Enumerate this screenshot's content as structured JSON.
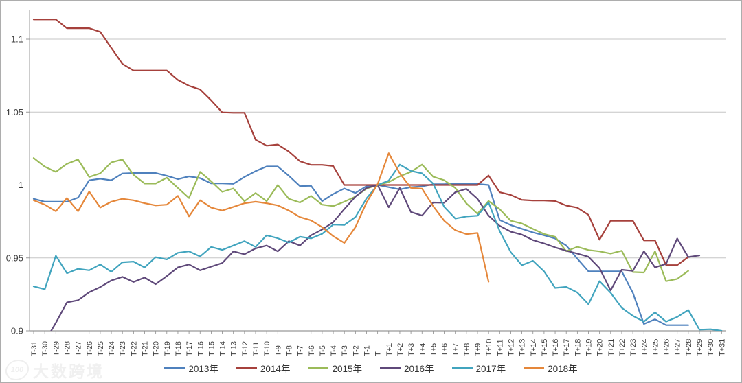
{
  "watermark": {
    "logo": "100",
    "brand": "大数跨境"
  },
  "chart_data": {
    "type": "line",
    "title": "",
    "xlabel": "",
    "ylabel": "",
    "ylim": [
      0.9,
      1.12
    ],
    "y_ticks": [
      1.1,
      1.05,
      1,
      0.95,
      0.9
    ],
    "y_tick_labels": [
      "1.1",
      "1.05",
      "1",
      "0.95",
      "0.9"
    ],
    "grid": true,
    "legend_position": "bottom",
    "x_categories": [
      "T-31",
      "T-30",
      "T-29",
      "T-28",
      "T-27",
      "T-26",
      "T-25",
      "T-24",
      "T-23",
      "T-22",
      "T-21",
      "T-20",
      "T-19",
      "T-18",
      "T-17",
      "T-16",
      "T-15",
      "T-14",
      "T-13",
      "T-12",
      "T-11",
      "T-10",
      "T-9",
      "T-8",
      "T-7",
      "T-6",
      "T-5",
      "T-4",
      "T-3",
      "T-2",
      "T-1",
      "T",
      "T+1",
      "T+2",
      "T+3",
      "T+4",
      "T+5",
      "T+6",
      "T+7",
      "T+8",
      "T+9",
      "T+10",
      "T+11",
      "T+12",
      "T+13",
      "T+14",
      "T+15",
      "T+16",
      "T+17",
      "T+18",
      "T+19",
      "T+20",
      "T+21",
      "T+22",
      "T+23",
      "T+24",
      "T+25",
      "T+26",
      "T+27",
      "T+28",
      "T+29",
      "T+30",
      "T+31"
    ],
    "series": [
      {
        "name": "2013年",
        "color": "#4F81BD",
        "values": [
          0.9905,
          0.9885,
          0.9885,
          0.9885,
          0.9913,
          1.0032,
          1.0043,
          1.0032,
          1.0079,
          1.0082,
          1.0082,
          1.0082,
          1.0063,
          1.004,
          1.0059,
          1.0047,
          1.0011,
          1.0011,
          1.0008,
          1.0055,
          1.0095,
          1.0127,
          1.0127,
          1.0063,
          0.9992,
          0.9995,
          0.9889,
          0.9938,
          0.9976,
          0.9945,
          0.9992,
          1.0,
          0.9985,
          0.997,
          0.9985,
          0.999,
          1.0005,
          1.0005,
          1.0009,
          1.0009,
          1.0007,
          1.0,
          0.976,
          0.9725,
          0.97,
          0.9675,
          0.9655,
          0.9633,
          0.9585,
          0.9495,
          0.9408,
          0.9408,
          0.9408,
          0.9408,
          0.9261,
          0.9047,
          0.9079,
          0.9039,
          0.9039,
          0.9039,
          null,
          null,
          null
        ]
      },
      {
        "name": "2014年",
        "color": "#A6413C",
        "values": [
          1.1135,
          1.1135,
          1.1135,
          1.1075,
          1.1075,
          1.1075,
          1.105,
          1.094,
          1.083,
          1.0785,
          1.0785,
          1.0785,
          1.0785,
          1.072,
          1.068,
          1.0655,
          1.058,
          1.0498,
          1.0495,
          1.0495,
          1.031,
          1.0269,
          1.0277,
          1.0229,
          1.0163,
          1.0138,
          1.0138,
          1.013,
          1.0,
          1.0,
          1.0,
          1.0,
          1.0,
          1.0,
          1.0,
          1.0,
          1.0,
          1.0,
          1.0,
          1.0,
          1.0,
          1.0065,
          0.995,
          0.9932,
          0.9898,
          0.9893,
          0.9893,
          0.989,
          0.9859,
          0.9844,
          0.9795,
          0.9625,
          0.9755,
          0.9755,
          0.9755,
          0.962,
          0.962,
          0.9451,
          0.9451,
          0.9506,
          null,
          null,
          null
        ]
      },
      {
        "name": "2015年",
        "color": "#9BBB59",
        "values": [
          1.0185,
          1.0125,
          1.009,
          1.0145,
          1.0175,
          1.0055,
          1.008,
          1.0155,
          1.0175,
          1.007,
          1.001,
          1.001,
          1.005,
          0.998,
          0.991,
          1.009,
          1.0025,
          0.9953,
          0.9976,
          0.9889,
          0.9945,
          0.9889,
          1.0,
          0.9905,
          0.988,
          0.9925,
          0.9865,
          0.9855,
          0.9885,
          0.992,
          0.9975,
          1.0,
          1.002,
          1.006,
          1.009,
          1.014,
          1.0057,
          1.0033,
          0.998,
          0.9874,
          0.9803,
          0.989,
          0.9834,
          0.9755,
          0.9736,
          0.9699,
          0.9664,
          0.9645,
          0.9546,
          0.9576,
          0.9554,
          0.9545,
          0.953,
          0.9549,
          0.9403,
          0.94,
          0.9546,
          0.934,
          0.9356,
          0.9411,
          null,
          null,
          null
        ]
      },
      {
        "name": "2016年",
        "color": "#5F497A",
        "values": [
          null,
          0.8925,
          0.9055,
          0.9195,
          0.921,
          0.9265,
          0.93,
          0.9345,
          0.937,
          0.9335,
          0.9365,
          0.932,
          0.9375,
          0.9435,
          0.9455,
          0.9415,
          0.944,
          0.9465,
          0.9545,
          0.9525,
          0.9565,
          0.9585,
          0.9545,
          0.9615,
          0.9585,
          0.9655,
          0.9695,
          0.9745,
          0.9835,
          0.992,
          0.998,
          1.0,
          0.9847,
          0.998,
          0.9815,
          0.979,
          0.988,
          0.9878,
          0.995,
          0.9973,
          0.9905,
          0.979,
          0.972,
          0.968,
          0.966,
          0.9622,
          0.9599,
          0.9572,
          0.9549,
          0.953,
          0.9508,
          0.943,
          0.9277,
          0.9419,
          0.9411,
          0.9546,
          0.9435,
          0.9459,
          0.9633,
          0.9506,
          0.9517,
          null,
          null
        ]
      },
      {
        "name": "2017年",
        "color": "#41A4BE",
        "values": [
          0.9305,
          0.9285,
          0.9515,
          0.9395,
          0.9425,
          0.9415,
          0.9455,
          0.9405,
          0.947,
          0.9475,
          0.9435,
          0.9505,
          0.949,
          0.9535,
          0.9545,
          0.951,
          0.9575,
          0.9555,
          0.9585,
          0.9615,
          0.9575,
          0.9655,
          0.9635,
          0.9605,
          0.9645,
          0.9634,
          0.9665,
          0.9729,
          0.9726,
          0.978,
          0.9908,
          1.0,
          1.003,
          1.014,
          1.0096,
          1.008,
          1.001,
          0.985,
          0.977,
          0.9784,
          0.9789,
          0.988,
          0.9684,
          0.954,
          0.945,
          0.948,
          0.9408,
          0.9294,
          0.9301,
          0.9263,
          0.9182,
          0.934,
          0.9261,
          0.9158,
          0.9103,
          0.9063,
          0.9127,
          0.9063,
          0.9095,
          0.9143,
          0.9008,
          0.9011,
          0.9
        ]
      },
      {
        "name": "2018年",
        "color": "#E5873A",
        "values": [
          0.9895,
          0.9865,
          0.982,
          0.991,
          0.982,
          0.9955,
          0.9845,
          0.9885,
          0.9905,
          0.9895,
          0.9875,
          0.986,
          0.9865,
          0.9925,
          0.9785,
          0.9895,
          0.9845,
          0.9825,
          0.985,
          0.9875,
          0.9885,
          0.9875,
          0.986,
          0.9825,
          0.978,
          0.9757,
          0.9711,
          0.9649,
          0.9603,
          0.9711,
          0.988,
          1.0005,
          1.0218,
          1.008,
          0.998,
          0.9975,
          0.9855,
          0.9755,
          0.969,
          0.9663,
          0.9671,
          0.9337,
          null,
          null,
          null,
          null,
          null,
          null,
          null,
          null,
          null,
          null,
          null,
          null,
          null,
          null,
          null,
          null,
          null,
          null,
          null,
          null,
          null
        ]
      }
    ]
  }
}
